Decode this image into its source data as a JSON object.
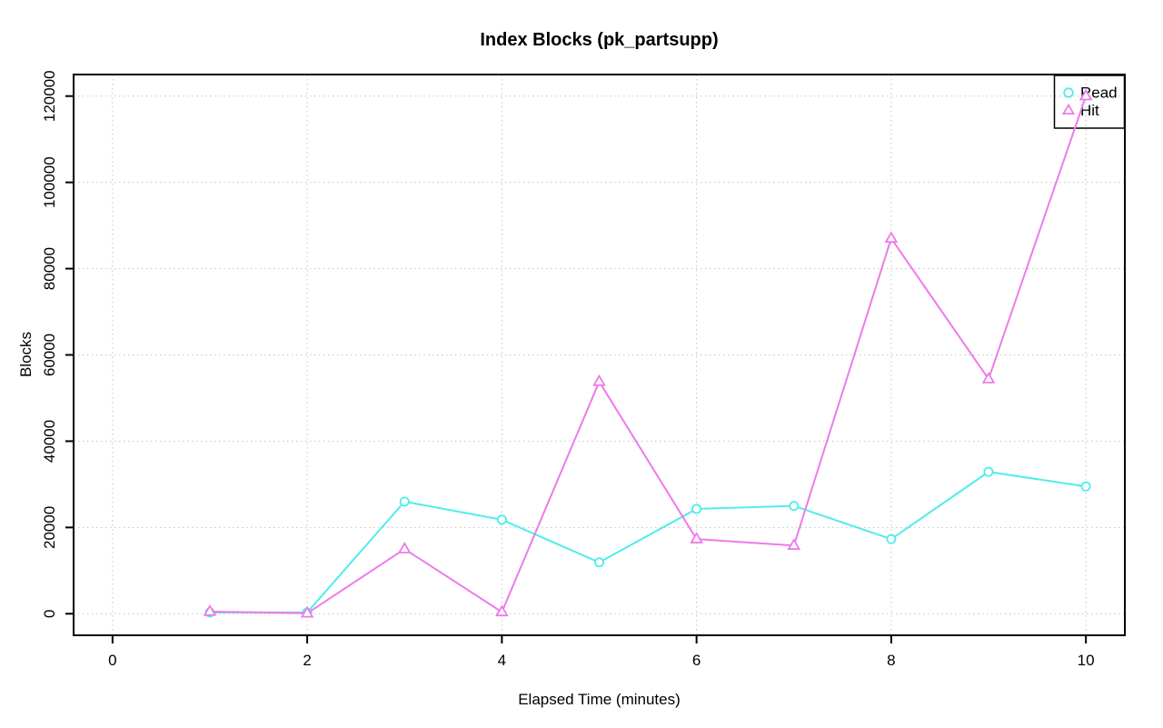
{
  "figure": {
    "background": "#ffffff"
  },
  "chart_data": {
    "type": "line",
    "title": "Index Blocks (pk_partsupp)",
    "xlabel": "Elapsed Time (minutes)",
    "ylabel": "Blocks",
    "x": [
      1,
      2,
      3,
      4,
      5,
      6,
      7,
      8,
      9,
      10
    ],
    "series": [
      {
        "name": "Read",
        "marker": "circle",
        "color": "#50ecec",
        "values": [
          300,
          300,
          26000,
          21800,
          11900,
          24300,
          25000,
          17300,
          32900,
          29500
        ]
      },
      {
        "name": "Hit",
        "marker": "triangle",
        "color": "#ee7ae9",
        "values": [
          500,
          100,
          15000,
          400,
          53800,
          17300,
          15800,
          87000,
          54400,
          120000
        ]
      }
    ],
    "xticks": [
      0,
      2,
      4,
      6,
      8,
      10
    ],
    "yticks": [
      0,
      20000,
      40000,
      60000,
      80000,
      100000,
      120000
    ],
    "xlim": [
      -0.4,
      10.4
    ],
    "ylim": [
      -5000,
      125000
    ],
    "grid": true,
    "grid_style": "dotted",
    "grid_color": "#c4c4c4",
    "axis_color": "#000000",
    "legend_position": "top-right"
  }
}
